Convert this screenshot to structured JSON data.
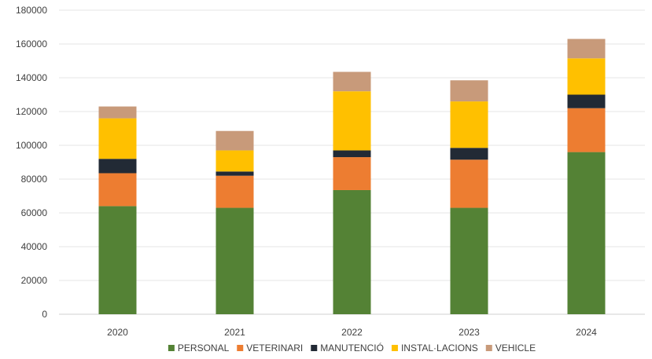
{
  "chart_data": {
    "type": "bar",
    "stacked": true,
    "categories": [
      "2020",
      "2021",
      "2022",
      "2023",
      "2024"
    ],
    "series": [
      {
        "name": "PERSONAL",
        "color": "#548235",
        "values": [
          64000,
          63000,
          73500,
          63000,
          96000
        ]
      },
      {
        "name": "VETERINARI",
        "color": "#ED7D31",
        "values": [
          19500,
          19000,
          19500,
          28500,
          26000
        ]
      },
      {
        "name": "MANUTENCIÓ",
        "color": "#222A35",
        "values": [
          8500,
          2500,
          4000,
          7000,
          8000
        ]
      },
      {
        "name": "INSTAL·LACIONS",
        "color": "#FFC000",
        "values": [
          24000,
          12500,
          35000,
          27500,
          21500
        ]
      },
      {
        "name": "VEHICLE",
        "color": "#C89A7A",
        "values": [
          7000,
          11500,
          11500,
          12500,
          11500
        ]
      }
    ],
    "ylim": [
      0,
      180000
    ],
    "yticks": [
      "0",
      "20000",
      "40000",
      "60000",
      "80000",
      "100000",
      "120000",
      "140000",
      "160000",
      "180000"
    ],
    "grid": true,
    "legend_position": "bottom"
  }
}
